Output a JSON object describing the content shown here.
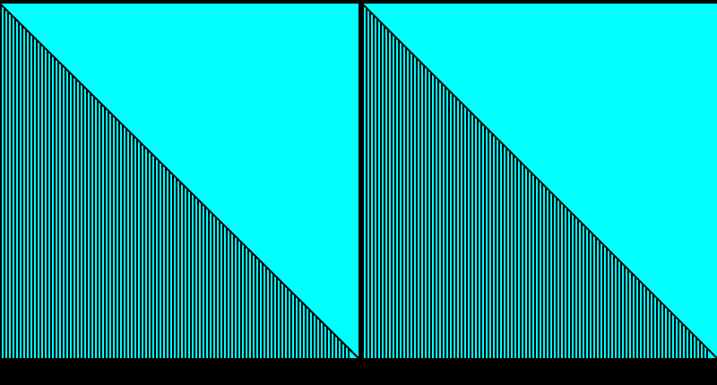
{
  "colors": {
    "background": "#000000",
    "fill": "#00ffff",
    "stripe": "#000000"
  },
  "panels": [
    {
      "name": "left-stripe-triangle-panel"
    },
    {
      "name": "right-stripe-triangle-panel"
    }
  ]
}
